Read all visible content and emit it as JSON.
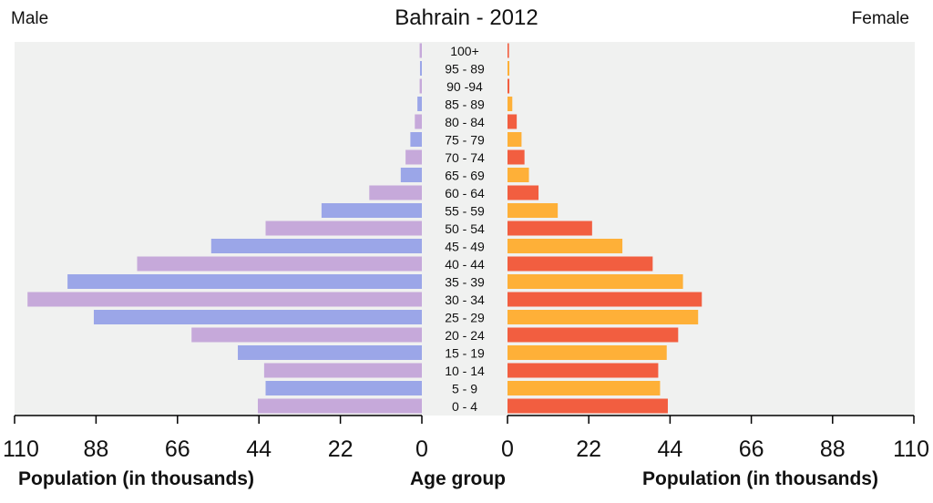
{
  "chart_data": {
    "type": "bar",
    "orientation": "horizontal-pyramid",
    "title": "Bahrain - 2012",
    "left_label": "Male",
    "right_label": "Female",
    "xlabel": "Population (in thousands)",
    "center_label": "Age group",
    "xlim": [
      0,
      110
    ],
    "ticks": [
      0,
      22,
      44,
      66,
      88,
      110
    ],
    "categories": [
      "0 - 4",
      "5 - 9",
      "10 - 14",
      "15 - 19",
      "20 - 24",
      "25 - 29",
      "30 - 34",
      "35 - 39",
      "40 - 44",
      "45 - 49",
      "50 - 54",
      "55 - 59",
      "60 - 64",
      "65 - 69",
      "70 - 74",
      "75 - 79",
      "80 - 84",
      "85 - 89",
      "90 -94",
      "95 - 89",
      "100+"
    ],
    "series": [
      {
        "name": "Male",
        "values": [
          44.3,
          42.2,
          42.6,
          49.7,
          62.2,
          88.6,
          106.5,
          95.7,
          76.9,
          56.9,
          42.2,
          27.1,
          14.2,
          5.7,
          4.4,
          3.1,
          1.9,
          1.2,
          0.6,
          0.5,
          0.6
        ]
      },
      {
        "name": "Female",
        "values": [
          43.4,
          41.3,
          40.8,
          43.1,
          46.2,
          51.6,
          52.6,
          47.5,
          39.3,
          31.1,
          22.9,
          13.6,
          8.4,
          5.8,
          4.6,
          3.8,
          2.5,
          1.3,
          0.5,
          0.5,
          0.4
        ]
      }
    ],
    "colors": {
      "male": [
        "#c6a9da",
        "#9ba6e8"
      ],
      "female": [
        "#f25e40",
        "#feb038"
      ],
      "plot_bg": "#f0f1f0"
    }
  }
}
